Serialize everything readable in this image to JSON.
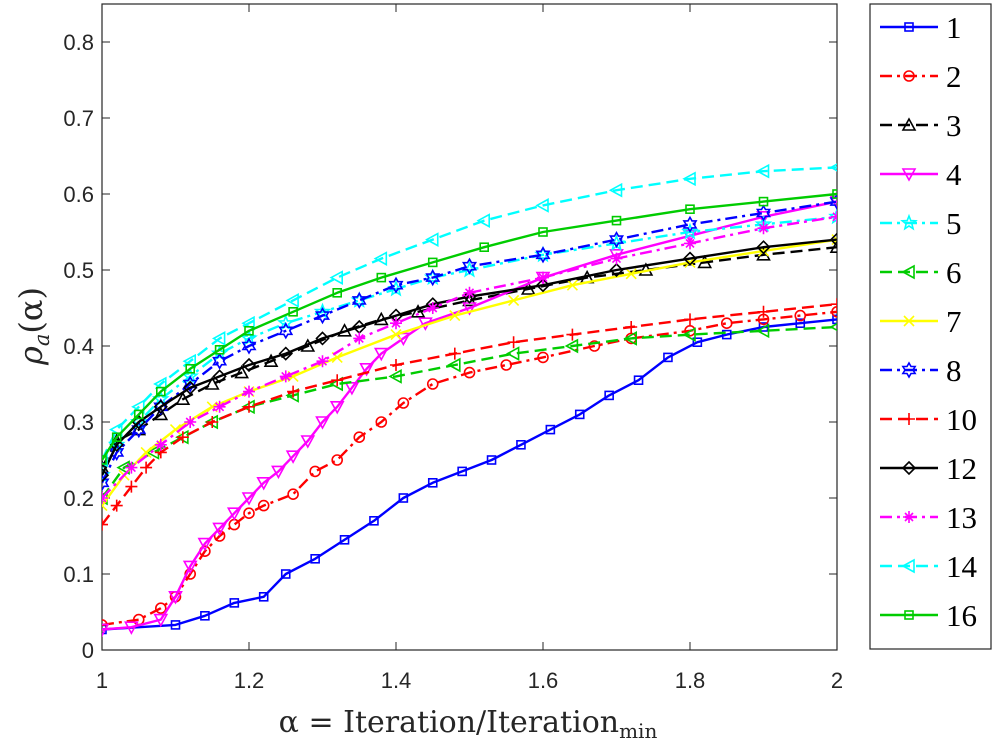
{
  "chart_data": {
    "type": "line",
    "title": "",
    "xlabel": "α = Iteration/Iteration",
    "xlabel_subscript": "min",
    "ylabel": "ρa(α)",
    "ylabel_main": "ρ",
    "ylabel_sub": "a",
    "ylabel_arg": "(α)",
    "xlim": [
      1,
      2
    ],
    "ylim": [
      0,
      0.85
    ],
    "xticks": [
      1,
      1.2,
      1.4,
      1.6,
      1.8,
      2
    ],
    "xtick_labels": [
      "1",
      "1.2",
      "1.4",
      "1.6",
      "1.8",
      "2"
    ],
    "yticks": [
      0,
      0.1,
      0.2,
      0.3,
      0.4,
      0.5,
      0.6,
      0.7,
      0.8
    ],
    "ytick_labels": [
      "0",
      "0.1",
      "0.2",
      "0.3",
      "0.4",
      "0.5",
      "0.6",
      "0.7",
      "0.8"
    ],
    "grid": false,
    "legend_position": "outside-right",
    "series": [
      {
        "name": "1",
        "color": "#0000ff",
        "dash": "solid",
        "marker": "square",
        "x": [
          1,
          1.1,
          1.14,
          1.18,
          1.22,
          1.25,
          1.29,
          1.33,
          1.37,
          1.41,
          1.45,
          1.49,
          1.53,
          1.57,
          1.61,
          1.65,
          1.69,
          1.73,
          1.77,
          1.81,
          1.85,
          1.9,
          1.95,
          2
        ],
        "y": [
          0.027,
          0.033,
          0.045,
          0.062,
          0.07,
          0.1,
          0.12,
          0.145,
          0.17,
          0.2,
          0.22,
          0.235,
          0.25,
          0.27,
          0.29,
          0.31,
          0.335,
          0.355,
          0.385,
          0.405,
          0.415,
          0.425,
          0.43,
          0.435
        ]
      },
      {
        "name": "2",
        "color": "#ff0000",
        "dash": "dashdot",
        "marker": "circle",
        "x": [
          1,
          1.05,
          1.08,
          1.1,
          1.12,
          1.14,
          1.16,
          1.18,
          1.2,
          1.22,
          1.26,
          1.29,
          1.32,
          1.35,
          1.38,
          1.41,
          1.45,
          1.5,
          1.55,
          1.6,
          1.67,
          1.72,
          1.8,
          1.85,
          1.9,
          1.95,
          2
        ],
        "y": [
          0.033,
          0.04,
          0.055,
          0.07,
          0.1,
          0.13,
          0.15,
          0.165,
          0.18,
          0.19,
          0.205,
          0.235,
          0.25,
          0.28,
          0.3,
          0.325,
          0.35,
          0.365,
          0.375,
          0.385,
          0.4,
          0.41,
          0.42,
          0.43,
          0.435,
          0.44,
          0.445
        ]
      },
      {
        "name": "3",
        "color": "#000000",
        "dash": "dashed",
        "marker": "triangle-up",
        "x": [
          1,
          1.02,
          1.05,
          1.08,
          1.11,
          1.15,
          1.19,
          1.23,
          1.28,
          1.33,
          1.38,
          1.43,
          1.5,
          1.58,
          1.66,
          1.74,
          1.82,
          1.9,
          2
        ],
        "y": [
          0.24,
          0.275,
          0.29,
          0.31,
          0.33,
          0.35,
          0.365,
          0.38,
          0.4,
          0.42,
          0.435,
          0.445,
          0.46,
          0.475,
          0.49,
          0.5,
          0.51,
          0.52,
          0.53
        ]
      },
      {
        "name": "4",
        "color": "#ff00ff",
        "dash": "solid",
        "marker": "triangle-down",
        "x": [
          1,
          1.04,
          1.08,
          1.1,
          1.12,
          1.14,
          1.16,
          1.18,
          1.2,
          1.22,
          1.24,
          1.26,
          1.28,
          1.3,
          1.32,
          1.34,
          1.36,
          1.38,
          1.41,
          1.44,
          1.5,
          1.6,
          1.7,
          1.8,
          1.9,
          2
        ],
        "y": [
          0.027,
          0.03,
          0.04,
          0.07,
          0.11,
          0.14,
          0.16,
          0.18,
          0.2,
          0.22,
          0.235,
          0.255,
          0.275,
          0.3,
          0.32,
          0.345,
          0.37,
          0.39,
          0.41,
          0.43,
          0.45,
          0.49,
          0.52,
          0.545,
          0.57,
          0.59
        ]
      },
      {
        "name": "5",
        "color": "#00ffff",
        "dash": "dashdot",
        "marker": "star",
        "x": [
          1,
          1.02,
          1.05,
          1.08,
          1.12,
          1.16,
          1.2,
          1.25,
          1.3,
          1.35,
          1.4,
          1.45,
          1.5,
          1.6,
          1.7,
          1.8,
          1.9,
          2
        ],
        "y": [
          0.23,
          0.27,
          0.3,
          0.33,
          0.36,
          0.39,
          0.41,
          0.43,
          0.445,
          0.46,
          0.475,
          0.49,
          0.5,
          0.52,
          0.535,
          0.55,
          0.56,
          0.57
        ]
      },
      {
        "name": "6",
        "color": "#00cc00",
        "dash": "dashed",
        "marker": "triangle-left",
        "x": [
          1,
          1.03,
          1.07,
          1.11,
          1.15,
          1.2,
          1.26,
          1.32,
          1.4,
          1.48,
          1.56,
          1.64,
          1.72,
          1.8,
          1.9,
          2
        ],
        "y": [
          0.2,
          0.24,
          0.26,
          0.28,
          0.3,
          0.32,
          0.335,
          0.35,
          0.36,
          0.375,
          0.39,
          0.4,
          0.41,
          0.415,
          0.42,
          0.425
        ]
      },
      {
        "name": "7",
        "color": "#ffff00",
        "dash": "solid",
        "marker": "x",
        "x": [
          1,
          1.03,
          1.06,
          1.1,
          1.15,
          1.2,
          1.26,
          1.32,
          1.4,
          1.48,
          1.56,
          1.64,
          1.72,
          1.8,
          1.9,
          2
        ],
        "y": [
          0.19,
          0.23,
          0.26,
          0.29,
          0.32,
          0.34,
          0.36,
          0.385,
          0.415,
          0.44,
          0.46,
          0.48,
          0.495,
          0.51,
          0.525,
          0.54
        ]
      },
      {
        "name": "8",
        "color": "#0000ff",
        "dash": "dashdot",
        "marker": "hexagram",
        "x": [
          1,
          1.02,
          1.05,
          1.08,
          1.12,
          1.16,
          1.2,
          1.25,
          1.3,
          1.35,
          1.4,
          1.45,
          1.5,
          1.6,
          1.7,
          1.8,
          1.9,
          2
        ],
        "y": [
          0.22,
          0.26,
          0.29,
          0.32,
          0.35,
          0.38,
          0.4,
          0.42,
          0.44,
          0.46,
          0.48,
          0.49,
          0.505,
          0.52,
          0.54,
          0.56,
          0.575,
          0.59
        ]
      },
      {
        "name": "10",
        "color": "#ff0000",
        "dash": "dashed",
        "marker": "plus",
        "x": [
          1,
          1.02,
          1.04,
          1.06,
          1.08,
          1.11,
          1.15,
          1.2,
          1.26,
          1.32,
          1.4,
          1.48,
          1.56,
          1.64,
          1.72,
          1.8,
          1.9,
          2
        ],
        "y": [
          0.165,
          0.19,
          0.215,
          0.24,
          0.26,
          0.28,
          0.3,
          0.32,
          0.34,
          0.355,
          0.375,
          0.39,
          0.405,
          0.415,
          0.425,
          0.435,
          0.445,
          0.455
        ]
      },
      {
        "name": "12",
        "color": "#000000",
        "dash": "solid",
        "marker": "diamond",
        "x": [
          1,
          1.02,
          1.05,
          1.08,
          1.12,
          1.16,
          1.2,
          1.25,
          1.3,
          1.35,
          1.4,
          1.45,
          1.5,
          1.6,
          1.7,
          1.8,
          1.9,
          2
        ],
        "y": [
          0.23,
          0.27,
          0.3,
          0.32,
          0.345,
          0.36,
          0.375,
          0.39,
          0.41,
          0.425,
          0.44,
          0.455,
          0.465,
          0.48,
          0.5,
          0.515,
          0.53,
          0.54
        ]
      },
      {
        "name": "13",
        "color": "#ff00ff",
        "dash": "dashdot",
        "marker": "asterisk",
        "x": [
          1,
          1.04,
          1.08,
          1.12,
          1.16,
          1.2,
          1.25,
          1.3,
          1.35,
          1.4,
          1.45,
          1.5,
          1.6,
          1.7,
          1.8,
          1.9,
          2
        ],
        "y": [
          0.2,
          0.24,
          0.27,
          0.3,
          0.32,
          0.34,
          0.36,
          0.38,
          0.41,
          0.43,
          0.45,
          0.47,
          0.49,
          0.515,
          0.535,
          0.555,
          0.57
        ]
      },
      {
        "name": "14",
        "color": "#00ffff",
        "dash": "dashed",
        "marker": "triangle-left",
        "x": [
          1,
          1.02,
          1.05,
          1.08,
          1.12,
          1.16,
          1.2,
          1.26,
          1.32,
          1.38,
          1.45,
          1.52,
          1.6,
          1.7,
          1.8,
          1.9,
          2
        ],
        "y": [
          0.25,
          0.29,
          0.32,
          0.35,
          0.38,
          0.41,
          0.43,
          0.46,
          0.49,
          0.515,
          0.54,
          0.565,
          0.585,
          0.605,
          0.62,
          0.63,
          0.635
        ]
      },
      {
        "name": "16",
        "color": "#00cc00",
        "dash": "solid",
        "marker": "square",
        "x": [
          1,
          1.02,
          1.05,
          1.08,
          1.12,
          1.16,
          1.2,
          1.26,
          1.32,
          1.38,
          1.45,
          1.52,
          1.6,
          1.7,
          1.8,
          1.9,
          2
        ],
        "y": [
          0.25,
          0.28,
          0.31,
          0.34,
          0.37,
          0.395,
          0.42,
          0.445,
          0.47,
          0.49,
          0.51,
          0.53,
          0.55,
          0.565,
          0.58,
          0.59,
          0.6
        ]
      }
    ]
  }
}
